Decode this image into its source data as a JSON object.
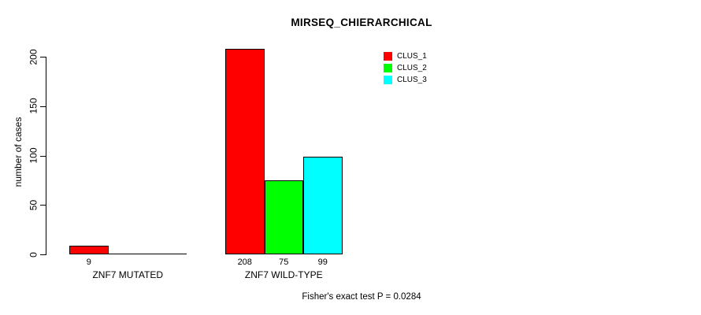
{
  "title": "MIRSEQ_CHIERARCHICAL",
  "footer": "Fisher's exact test P = 0.0284",
  "chart_data": {
    "type": "bar",
    "grouped": true,
    "title": "MIRSEQ_CHIERARCHICAL",
    "xlabel": "",
    "ylabel": "number of cases",
    "ylim": [
      0,
      200
    ],
    "yticks": [
      0,
      50,
      100,
      150,
      200
    ],
    "grid": false,
    "categories": [
      "ZNF7 MUTATED",
      "ZNF7 WILD-TYPE"
    ],
    "series": [
      {
        "name": "CLUS_1",
        "color": "#ff0000",
        "values": [
          9,
          208
        ]
      },
      {
        "name": "CLUS_2",
        "color": "#00ff00",
        "values": [
          0,
          75
        ]
      },
      {
        "name": "CLUS_3",
        "color": "#00ffff",
        "values": [
          0,
          99
        ]
      }
    ],
    "bar_labels": [
      [
        "9",
        "",
        ""
      ],
      [
        "208",
        "75",
        "99"
      ]
    ],
    "legend": {
      "position": "top-right",
      "entries": [
        "CLUS_1",
        "CLUS_2",
        "CLUS_3"
      ]
    },
    "annotation": "Fisher's exact test P = 0.0284"
  }
}
